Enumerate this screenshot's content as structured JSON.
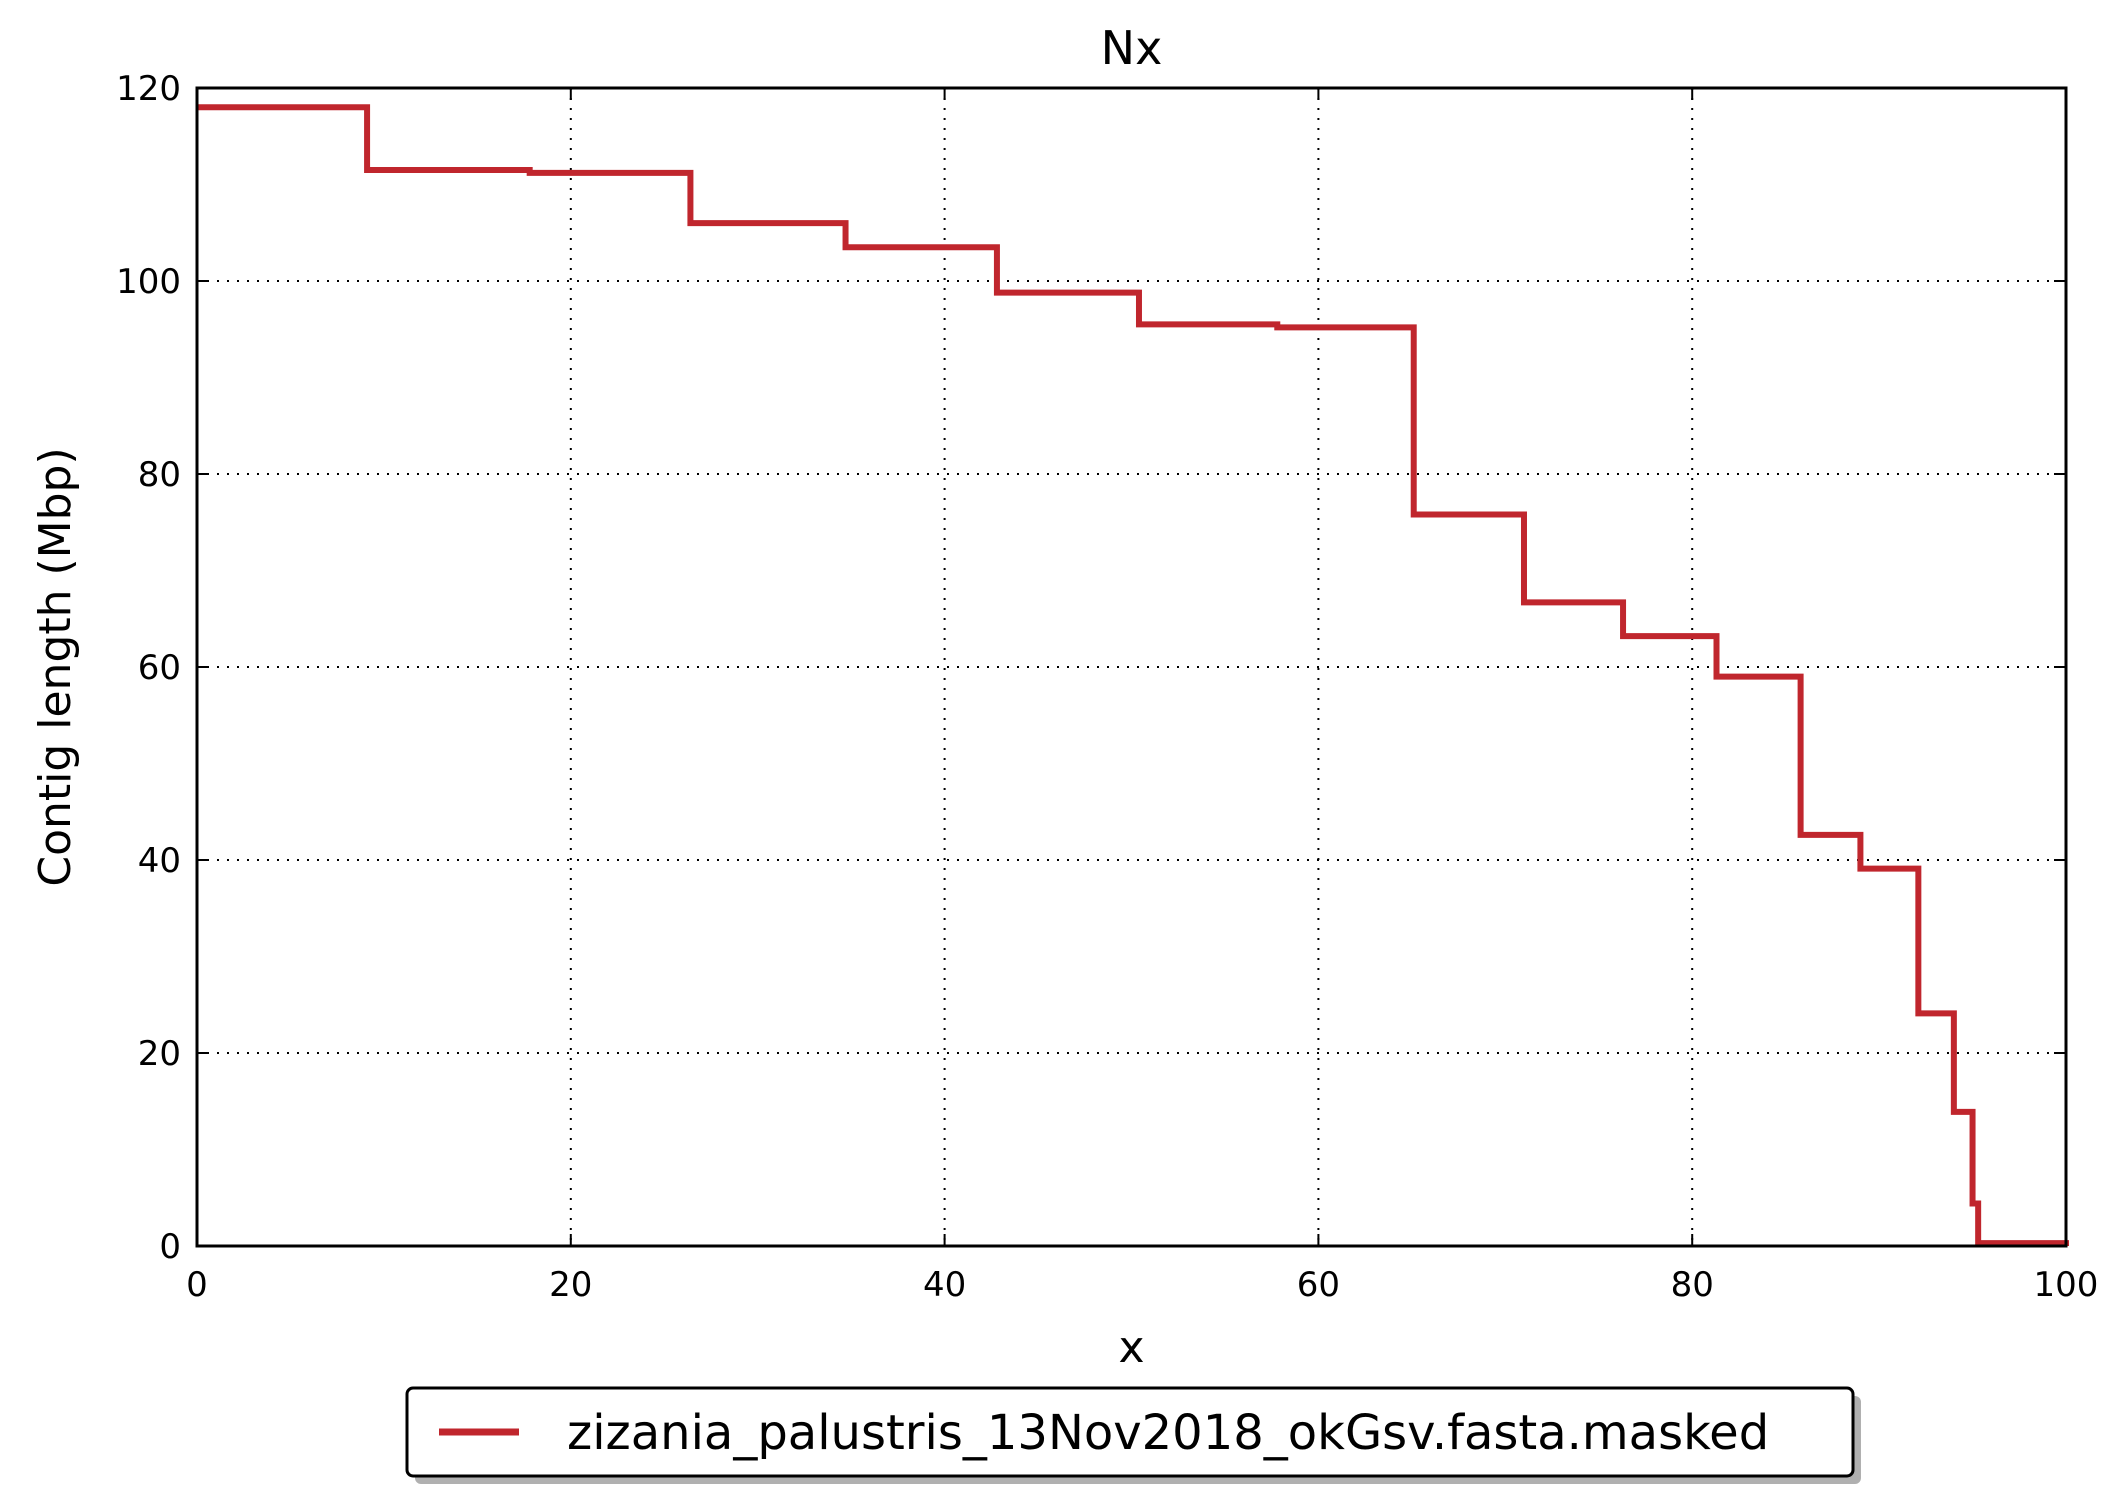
{
  "chart_data": {
    "type": "line",
    "title": "Nx",
    "xlabel": "x",
    "ylabel": "Contig length  (Mbp)",
    "xlim": [
      0,
      100
    ],
    "ylim": [
      0,
      120
    ],
    "xticks": [
      0,
      20,
      40,
      60,
      80,
      100
    ],
    "yticks": [
      0,
      20,
      40,
      60,
      80,
      100,
      120
    ],
    "x_tick_labels": [
      "0",
      "20",
      "40",
      "60",
      "80",
      "100"
    ],
    "y_tick_labels": [
      "0",
      "20",
      "40",
      "60",
      "80",
      "100",
      "120"
    ],
    "grid": true,
    "legend_position": "bottom-center",
    "series": [
      {
        "name": "zizania_palustris_13Nov2018_okGsv.fasta.masked",
        "color": "#c0262d",
        "step": "post",
        "x": [
          0,
          9.1,
          17.8,
          26.4,
          34.7,
          42.8,
          50.4,
          57.8,
          65.1,
          71.0,
          76.3,
          81.3,
          85.8,
          89.0,
          92.1,
          94.0,
          95.0,
          95.3,
          100
        ],
        "y": [
          118.0,
          111.5,
          111.2,
          106.0,
          103.5,
          98.8,
          95.5,
          95.2,
          75.8,
          66.7,
          63.2,
          59.0,
          42.6,
          39.1,
          24.1,
          13.9,
          4.4,
          0.3,
          0
        ]
      }
    ]
  }
}
